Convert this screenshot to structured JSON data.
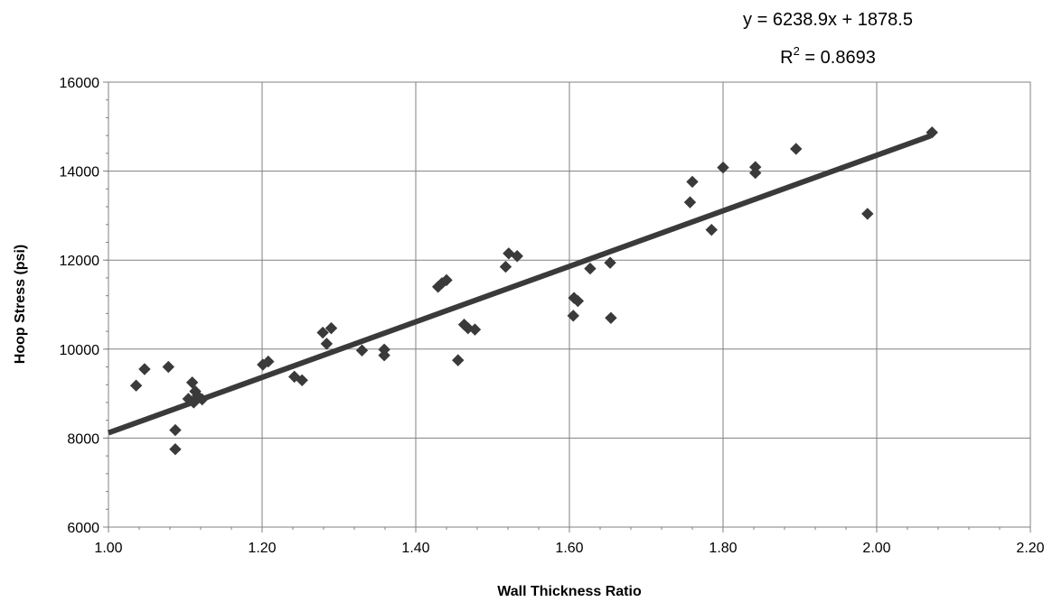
{
  "chart_data": {
    "type": "scatter",
    "xlabel": "Wall Thickness Ratio",
    "ylabel": "Hoop Stress (psi)",
    "xlim": [
      1.0,
      2.2
    ],
    "ylim": [
      6000,
      16000
    ],
    "x_ticks": [
      "1.00",
      "1.20",
      "1.40",
      "1.60",
      "1.80",
      "2.00",
      "2.20"
    ],
    "y_ticks": [
      "6000",
      "8000",
      "10000",
      "12000",
      "14000",
      "16000"
    ],
    "grid": true,
    "marker": "diamond",
    "marker_color": "#3a3a3a",
    "line_color": "#3a3a3a",
    "equation": "y = 6238.9x + 1878.5",
    "r2_prefix": "R",
    "r2_exp": "2",
    "r2_value": " = 0.8693",
    "trendline": {
      "slope": 6238.9,
      "intercept": 1878.5,
      "x_range": [
        1.0,
        2.07
      ]
    },
    "points": [
      [
        1.036,
        9180
      ],
      [
        1.047,
        9550
      ],
      [
        1.078,
        9600
      ],
      [
        1.087,
        8180
      ],
      [
        1.087,
        7750
      ],
      [
        1.104,
        8880
      ],
      [
        1.109,
        9250
      ],
      [
        1.111,
        8800
      ],
      [
        1.113,
        9050
      ],
      [
        1.116,
        8950
      ],
      [
        1.122,
        8870
      ],
      [
        1.201,
        9650
      ],
      [
        1.208,
        9720
      ],
      [
        1.242,
        9380
      ],
      [
        1.252,
        9300
      ],
      [
        1.279,
        10370
      ],
      [
        1.284,
        10120
      ],
      [
        1.29,
        10470
      ],
      [
        1.33,
        9970
      ],
      [
        1.359,
        9990
      ],
      [
        1.359,
        9860
      ],
      [
        1.429,
        11400
      ],
      [
        1.434,
        11480
      ],
      [
        1.44,
        11550
      ],
      [
        1.455,
        9750
      ],
      [
        1.463,
        10550
      ],
      [
        1.468,
        10470
      ],
      [
        1.477,
        10440
      ],
      [
        1.517,
        11850
      ],
      [
        1.521,
        12150
      ],
      [
        1.532,
        12090
      ],
      [
        1.605,
        10750
      ],
      [
        1.606,
        11150
      ],
      [
        1.611,
        11080
      ],
      [
        1.627,
        11810
      ],
      [
        1.653,
        11940
      ],
      [
        1.654,
        10700
      ],
      [
        1.757,
        13300
      ],
      [
        1.76,
        13760
      ],
      [
        1.785,
        12680
      ],
      [
        1.8,
        14080
      ],
      [
        1.842,
        14090
      ],
      [
        1.842,
        13960
      ],
      [
        1.895,
        14500
      ],
      [
        1.988,
        13040
      ],
      [
        2.072,
        14870
      ]
    ]
  }
}
